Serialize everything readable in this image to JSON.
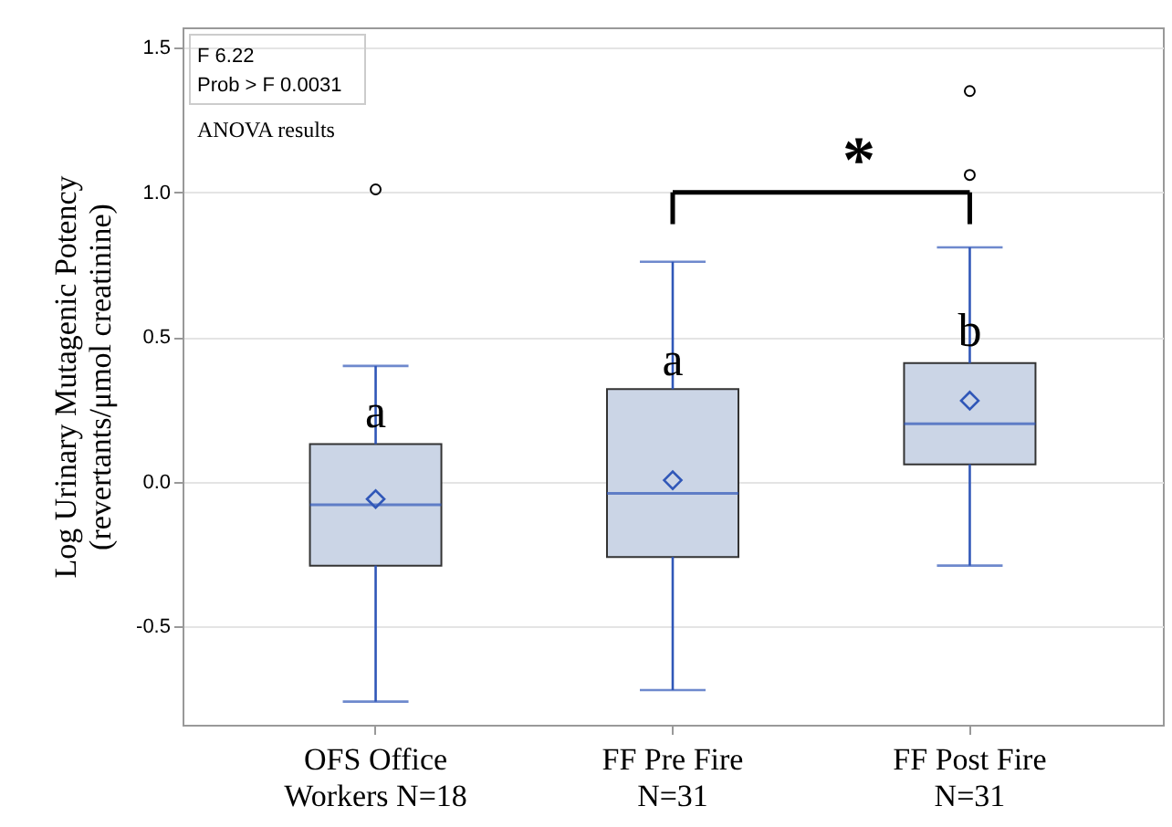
{
  "chart_data": {
    "type": "box",
    "ylabel": "Log Urinary Mutagenic Potency (revertants/μmol creatinine)",
    "categories": [
      "OFS Office Workers N=18",
      "FF Pre Fire N=31",
      "FF Post Fire N=31"
    ],
    "boxes": [
      {
        "low": -0.76,
        "q1": -0.29,
        "median": -0.08,
        "q3": 0.13,
        "high": 0.4,
        "mean": -0.06,
        "outliers": [
          1.01
        ]
      },
      {
        "low": -0.72,
        "q1": -0.26,
        "median": -0.04,
        "q3": 0.32,
        "high": 0.76,
        "mean": 0.005
      },
      {
        "low": -0.29,
        "q1": 0.06,
        "median": 0.2,
        "q3": 0.41,
        "high": 0.81,
        "mean": 0.28,
        "outliers": [
          1.35,
          1.06
        ]
      }
    ],
    "ylim": [
      -0.84,
      1.57
    ],
    "yticks": [
      -0.5,
      {
        "value": 0,
        "label": "0.0"
      },
      0.5,
      {
        "value": 1,
        "label": "1.0"
      },
      1.5
    ],
    "grid": "y",
    "annotations": [
      "F 6.22",
      "Prob > F 0.0031",
      "ANOVA results",
      "*",
      {
        "text": "a",
        "x": "OFS Office Workers N=18",
        "y": 0.24
      },
      {
        "text": "a",
        "x": "FF Pre Fire N=31",
        "y": 0.42
      },
      {
        "text": "b",
        "x": "FF Post Fire N=31",
        "y": 0.52
      }
    ]
  }
}
